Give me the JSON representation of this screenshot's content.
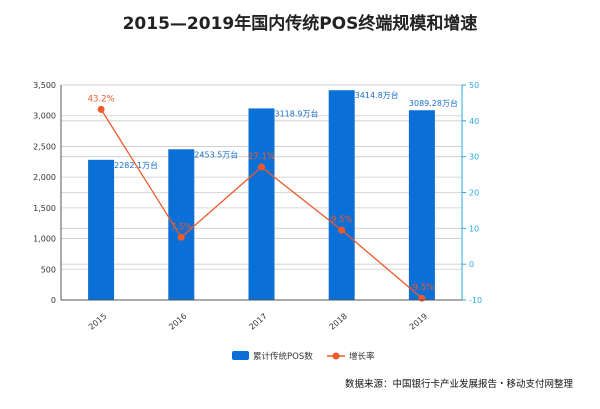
{
  "chart_data": {
    "type": "bar+line",
    "title": "2015—2019年国内传统POS终端规模和增速",
    "categories": [
      "2015",
      "2016",
      "2017",
      "2018",
      "2019"
    ],
    "series": [
      {
        "name": "累计传统POS数",
        "type": "bar",
        "axis": "left",
        "values": [
          2282.1,
          2453.5,
          3118.9,
          3414.8,
          3089.28
        ],
        "labels": [
          "2282.1万台",
          "2453.5万台",
          "3118.9万台",
          "3414.8万台",
          "3089.28万台"
        ],
        "color": "#0a6fd6"
      },
      {
        "name": "增长率",
        "type": "line",
        "axis": "right",
        "values": [
          43.2,
          7.5,
          27.1,
          9.5,
          -9.5
        ],
        "labels": [
          "43.2%",
          "7.5%",
          "27.1%",
          "9.5%",
          "-9.5%"
        ],
        "color": "#f0592a"
      }
    ],
    "left_axis": {
      "range": [
        0,
        3500
      ],
      "ticks": [
        0,
        500,
        1000,
        1500,
        2000,
        2500,
        3000,
        3500
      ],
      "tick_labels": [
        "0",
        "500",
        "1,000",
        "1,500",
        "2,000",
        "2,500",
        "3,000",
        "3,500"
      ]
    },
    "right_axis": {
      "range": [
        -10,
        50
      ],
      "ticks": [
        -10,
        0,
        10,
        20,
        30,
        40,
        50
      ],
      "tick_labels": [
        "-10",
        "0",
        "10",
        "20",
        "30",
        "40",
        "50"
      ],
      "color": "#29a8e0"
    },
    "grid": true,
    "legend_placement": "bottom",
    "source": "数据来源：中国银行卡产业发展报告・移动支付网整理"
  }
}
